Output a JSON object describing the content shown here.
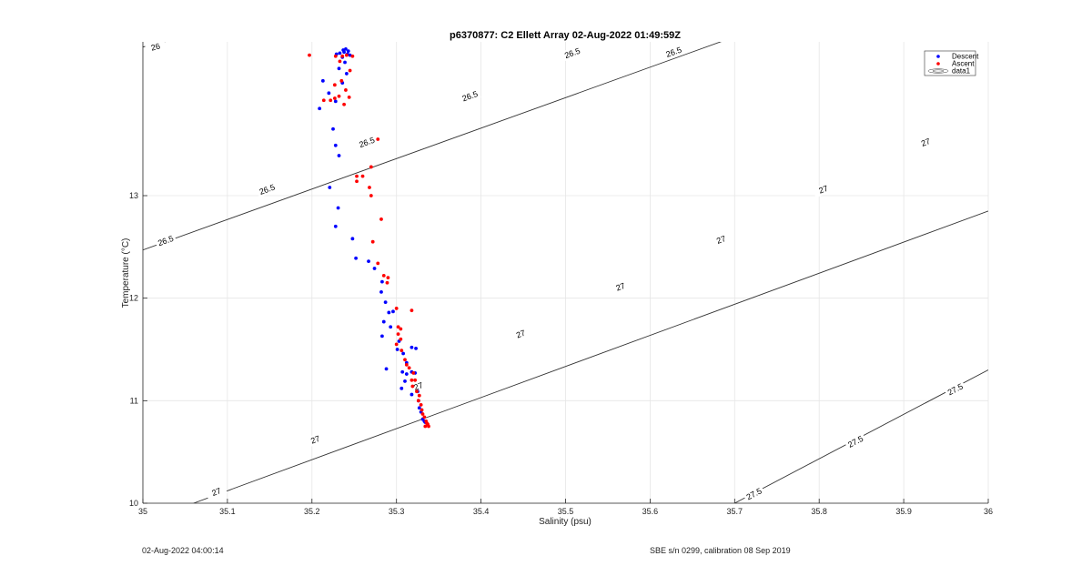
{
  "chart_data": {
    "type": "scatter",
    "title": "p6370877: C2 Ellett Array 02-Aug-2022 01:49:59Z",
    "xlabel": "Salinity (psu)",
    "ylabel": "Temperature (°C)",
    "xlim": [
      35,
      36
    ],
    "ylim": [
      10,
      14.5
    ],
    "xticks": [
      35,
      35.1,
      35.2,
      35.3,
      35.4,
      35.5,
      35.6,
      35.7,
      35.8,
      35.9,
      36
    ],
    "xtick_labels": [
      "35",
      "35.1",
      "35.2",
      "35.3",
      "35.4",
      "35.5",
      "35.6",
      "35.7",
      "35.8",
      "35.9",
      "36"
    ],
    "yticks": [
      10,
      11,
      12,
      13
    ],
    "ytick_labels": [
      "10",
      "11",
      "12",
      "13"
    ],
    "grid": true,
    "legend_placement": "top-right",
    "legend": [
      {
        "label": "Descent",
        "color": "#0000ff",
        "marker": "dot"
      },
      {
        "label": "Ascent",
        "color": "#ff0000",
        "marker": "dot"
      },
      {
        "label": "data1",
        "color": "#000000",
        "marker": "contour"
      }
    ],
    "contours": [
      {
        "level": "26",
        "points": [
          [
            35.0,
            14.45
          ],
          [
            35.05,
            14.55
          ]
        ],
        "labels": [
          [
            35.015,
            14.45
          ]
        ]
      },
      {
        "level": "26.5",
        "points": [
          [
            35.0,
            12.47
          ],
          [
            35.7,
            14.55
          ]
        ],
        "labels": [
          [
            35.027,
            12.56
          ],
          [
            35.147,
            13.06
          ],
          [
            35.265,
            13.52
          ],
          [
            35.387,
            13.97
          ],
          [
            35.508,
            14.39
          ],
          [
            35.628,
            14.4
          ]
        ]
      },
      {
        "level": "27",
        "points": [
          [
            35.06,
            10.0
          ],
          [
            36.0,
            12.85
          ]
        ],
        "labels": [
          [
            35.087,
            10.11
          ],
          [
            35.204,
            10.62
          ],
          [
            35.326,
            11.14
          ],
          [
            35.447,
            11.65
          ],
          [
            35.565,
            12.11
          ],
          [
            35.684,
            12.57
          ],
          [
            35.805,
            13.06
          ],
          [
            35.926,
            13.52
          ]
        ]
      },
      {
        "level": "27.5",
        "points": [
          [
            35.7,
            10.0
          ],
          [
            36.0,
            11.3
          ]
        ],
        "labels": [
          [
            35.723,
            10.09
          ],
          [
            35.843,
            10.6
          ],
          [
            35.961,
            11.11
          ]
        ]
      }
    ],
    "series": [
      {
        "name": "Descent",
        "color": "#0000ff",
        "points": [
          [
            35.24,
            14.43
          ],
          [
            35.237,
            14.42
          ],
          [
            35.243,
            14.41
          ],
          [
            35.238,
            14.4
          ],
          [
            35.233,
            14.39
          ],
          [
            35.242,
            14.38
          ],
          [
            35.229,
            14.38
          ],
          [
            35.236,
            14.35
          ],
          [
            35.245,
            14.37
          ],
          [
            35.239,
            14.3
          ],
          [
            35.232,
            14.24
          ],
          [
            35.241,
            14.19
          ],
          [
            35.213,
            14.12
          ],
          [
            35.236,
            14.1
          ],
          [
            35.22,
            14.0
          ],
          [
            35.228,
            13.92
          ],
          [
            35.209,
            13.85
          ],
          [
            35.225,
            13.65
          ],
          [
            35.228,
            13.49
          ],
          [
            35.232,
            13.39
          ],
          [
            35.221,
            13.08
          ],
          [
            35.231,
            12.88
          ],
          [
            35.228,
            12.7
          ],
          [
            35.248,
            12.58
          ],
          [
            35.252,
            12.39
          ],
          [
            35.267,
            12.36
          ],
          [
            35.274,
            12.29
          ],
          [
            35.283,
            12.16
          ],
          [
            35.282,
            12.06
          ],
          [
            35.287,
            11.96
          ],
          [
            35.291,
            11.86
          ],
          [
            35.296,
            11.87
          ],
          [
            35.285,
            11.77
          ],
          [
            35.293,
            11.72
          ],
          [
            35.303,
            11.58
          ],
          [
            35.283,
            11.63
          ],
          [
            35.301,
            11.5
          ],
          [
            35.308,
            11.46
          ],
          [
            35.318,
            11.52
          ],
          [
            35.323,
            11.51
          ],
          [
            35.312,
            11.37
          ],
          [
            35.288,
            11.31
          ],
          [
            35.318,
            11.28
          ],
          [
            35.312,
            11.26
          ],
          [
            35.322,
            11.27
          ],
          [
            35.307,
            11.28
          ],
          [
            35.31,
            11.19
          ],
          [
            35.306,
            11.12
          ],
          [
            35.318,
            11.06
          ],
          [
            35.325,
            11.09
          ],
          [
            35.326,
            11.0
          ],
          [
            35.327,
            10.93
          ],
          [
            35.329,
            10.89
          ],
          [
            35.331,
            10.82
          ],
          [
            35.333,
            10.8
          ],
          [
            35.334,
            10.79
          ]
        ]
      },
      {
        "name": "Ascent",
        "color": "#ff0000",
        "points": [
          [
            35.197,
            14.37
          ],
          [
            35.228,
            14.36
          ],
          [
            35.236,
            14.36
          ],
          [
            35.241,
            14.37
          ],
          [
            35.248,
            14.36
          ],
          [
            35.233,
            14.31
          ],
          [
            35.245,
            14.22
          ],
          [
            35.227,
            14.08
          ],
          [
            35.235,
            14.12
          ],
          [
            35.24,
            14.03
          ],
          [
            35.232,
            13.97
          ],
          [
            35.222,
            13.93
          ],
          [
            35.227,
            13.95
          ],
          [
            35.214,
            13.93
          ],
          [
            35.238,
            13.89
          ],
          [
            35.244,
            13.96
          ],
          [
            35.278,
            13.55
          ],
          [
            35.27,
            13.28
          ],
          [
            35.26,
            13.19
          ],
          [
            35.253,
            13.14
          ],
          [
            35.253,
            13.19
          ],
          [
            35.268,
            13.08
          ],
          [
            35.27,
            13.0
          ],
          [
            35.282,
            12.77
          ],
          [
            35.272,
            12.55
          ],
          [
            35.278,
            12.34
          ],
          [
            35.285,
            12.22
          ],
          [
            35.29,
            12.2
          ],
          [
            35.289,
            12.15
          ],
          [
            35.3,
            11.9
          ],
          [
            35.302,
            11.72
          ],
          [
            35.305,
            11.7
          ],
          [
            35.302,
            11.65
          ],
          [
            35.305,
            11.6
          ],
          [
            35.3,
            11.55
          ],
          [
            35.306,
            11.49
          ],
          [
            35.318,
            11.88
          ],
          [
            35.31,
            11.4
          ],
          [
            35.312,
            11.35
          ],
          [
            35.315,
            11.32
          ],
          [
            35.32,
            11.27
          ],
          [
            35.318,
            11.2
          ],
          [
            35.322,
            11.2
          ],
          [
            35.319,
            11.14
          ],
          [
            35.324,
            11.09
          ],
          [
            35.327,
            11.05
          ],
          [
            35.326,
            11.0
          ],
          [
            35.329,
            10.96
          ],
          [
            35.33,
            10.91
          ],
          [
            35.331,
            10.87
          ],
          [
            35.333,
            10.84
          ],
          [
            35.335,
            10.8
          ],
          [
            35.336,
            10.78
          ],
          [
            35.338,
            10.75
          ],
          [
            35.334,
            10.75
          ],
          [
            35.337,
            10.77
          ]
        ]
      }
    ]
  },
  "footer": {
    "left": "02-Aug-2022 04:00:14",
    "right": "SBE s/n 0299, calibration 08 Sep 2019"
  },
  "colors": {
    "descent": "#0000ff",
    "ascent": "#ff0000",
    "grid": "#e6e6e6",
    "axis": "#262626"
  }
}
